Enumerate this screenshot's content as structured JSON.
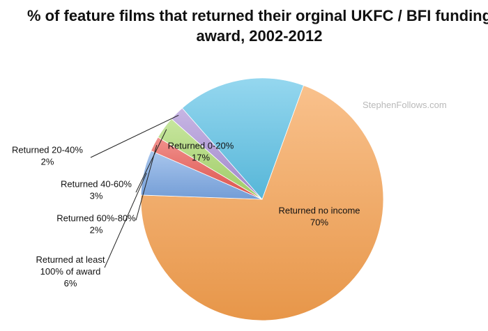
{
  "chart_data": {
    "type": "pie",
    "title_lines": [
      "% of feature films that returned their orginal UKFC / BFI funding",
      "award, 2002-2012"
    ],
    "watermark": "StephenFollows.com",
    "slices": [
      {
        "label_lines": [
          "Returned no income",
          "70%"
        ],
        "value": 70,
        "color": "#f6a04e"
      },
      {
        "label_lines": [
          "Returned at least",
          "100% of award",
          "6%"
        ],
        "value": 6,
        "color": "#7aa7e4"
      },
      {
        "label_lines": [
          "Returned 60%-80%",
          "2%"
        ],
        "value": 2,
        "color": "#e9554f"
      },
      {
        "label_lines": [
          "Returned 40-60%",
          "3%"
        ],
        "value": 3,
        "color": "#a9d86b"
      },
      {
        "label_lines": [
          "Returned 20-40%",
          "2%"
        ],
        "value": 2,
        "color": "#a98fd6"
      },
      {
        "label_lines": [
          "Returned 0-20%",
          "17%"
        ],
        "value": 17,
        "color": "#5cc2e6"
      }
    ]
  }
}
